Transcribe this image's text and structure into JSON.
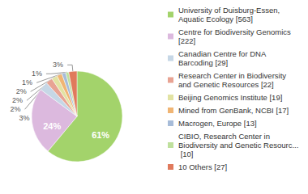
{
  "chart_data": {
    "type": "pie",
    "categories": [
      "University of Duisburg-Essen, Aquatic Ecology [563]",
      "Centre for Biodiversity Genomics [222]",
      "Canadian Centre for DNA Barcoding [29]",
      "Research Center in Biodiversity and Genetic Resources [22]",
      "Beijing Genomics Institute [19]",
      "Mined from GenBank, NCBI [17]",
      "Macrogen, Europe [13]",
      "CIBIO, Research Center in Biodiversity and Genetic Resourc... [10]",
      "10 Others [27]"
    ],
    "values": [
      61.06,
      24.08,
      3.15,
      2.39,
      2.06,
      1.84,
      1.41,
      1.08,
      2.93
    ],
    "value_labels": [
      "61%",
      "24%",
      "3%",
      "2%",
      "2%",
      "2%",
      "1%",
      "1%",
      "3%"
    ],
    "colors": [
      "#a3d36b",
      "#dcb9de",
      "#c6d7e6",
      "#e8a393",
      "#e2e3a3",
      "#f0b574",
      "#a7bcd9",
      "#bfe09d",
      "#e07a5c"
    ],
    "data_labels": true,
    "legend": "right"
  }
}
